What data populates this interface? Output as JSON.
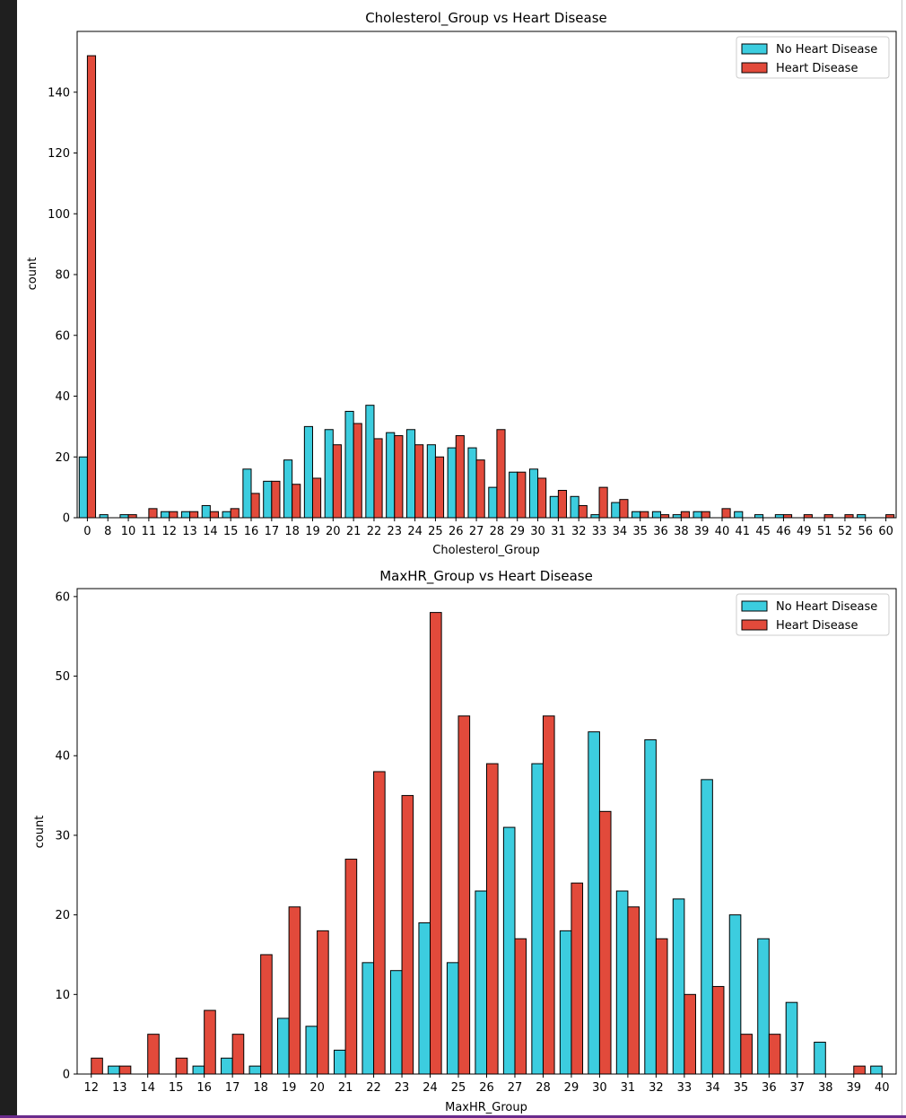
{
  "colors": {
    "no_heart_disease": "#3ccddf",
    "heart_disease": "#e24a3b",
    "bar_edge": "#000000"
  },
  "chart_data": [
    {
      "type": "bar",
      "title": "Cholesterol_Group vs Heart Disease",
      "xlabel": "Cholesterol_Group",
      "ylabel": "count",
      "ylim": [
        0,
        160
      ],
      "yticks": [
        0,
        20,
        40,
        60,
        80,
        100,
        120,
        140
      ],
      "legend_position": "top-right",
      "categories": [
        "0",
        "8",
        "10",
        "11",
        "12",
        "13",
        "14",
        "15",
        "16",
        "17",
        "18",
        "19",
        "20",
        "21",
        "22",
        "23",
        "24",
        "25",
        "26",
        "27",
        "28",
        "29",
        "30",
        "31",
        "32",
        "33",
        "34",
        "35",
        "36",
        "38",
        "39",
        "40",
        "41",
        "45",
        "46",
        "49",
        "51",
        "52",
        "56",
        "60"
      ],
      "series": [
        {
          "name": "No Heart Disease",
          "values": [
            20,
            1,
            1,
            0,
            2,
            2,
            4,
            2,
            16,
            12,
            19,
            30,
            29,
            35,
            37,
            28,
            29,
            24,
            23,
            23,
            10,
            15,
            16,
            7,
            7,
            1,
            5,
            2,
            2,
            1,
            2,
            0,
            2,
            1,
            1,
            0,
            0,
            0,
            1,
            0
          ]
        },
        {
          "name": "Heart Disease",
          "values": [
            152,
            0,
            1,
            3,
            2,
            2,
            2,
            3,
            8,
            12,
            11,
            13,
            24,
            31,
            26,
            27,
            24,
            20,
            27,
            19,
            29,
            15,
            13,
            9,
            4,
            10,
            6,
            2,
            1,
            2,
            2,
            3,
            0,
            0,
            1,
            1,
            1,
            1,
            0,
            1
          ]
        }
      ]
    },
    {
      "type": "bar",
      "title": "MaxHR_Group vs Heart Disease",
      "xlabel": "MaxHR_Group",
      "ylabel": "count",
      "ylim": [
        0,
        61
      ],
      "yticks": [
        0,
        10,
        20,
        30,
        40,
        50,
        60
      ],
      "legend_position": "top-right",
      "categories": [
        "12",
        "13",
        "14",
        "15",
        "16",
        "17",
        "18",
        "19",
        "20",
        "21",
        "22",
        "23",
        "24",
        "25",
        "26",
        "27",
        "28",
        "29",
        "30",
        "31",
        "32",
        "33",
        "34",
        "35",
        "36",
        "37",
        "38",
        "39",
        "40"
      ],
      "series": [
        {
          "name": "No Heart Disease",
          "values": [
            0,
            1,
            0,
            0,
            1,
            2,
            1,
            7,
            6,
            3,
            14,
            13,
            19,
            14,
            23,
            31,
            39,
            18,
            43,
            23,
            42,
            22,
            37,
            20,
            17,
            9,
            4,
            0,
            1
          ]
        },
        {
          "name": "Heart Disease",
          "values": [
            2,
            1,
            5,
            2,
            8,
            5,
            15,
            21,
            18,
            27,
            38,
            35,
            58,
            45,
            39,
            17,
            45,
            24,
            33,
            21,
            17,
            10,
            11,
            5,
            5,
            0,
            0,
            1,
            0
          ]
        }
      ]
    }
  ]
}
